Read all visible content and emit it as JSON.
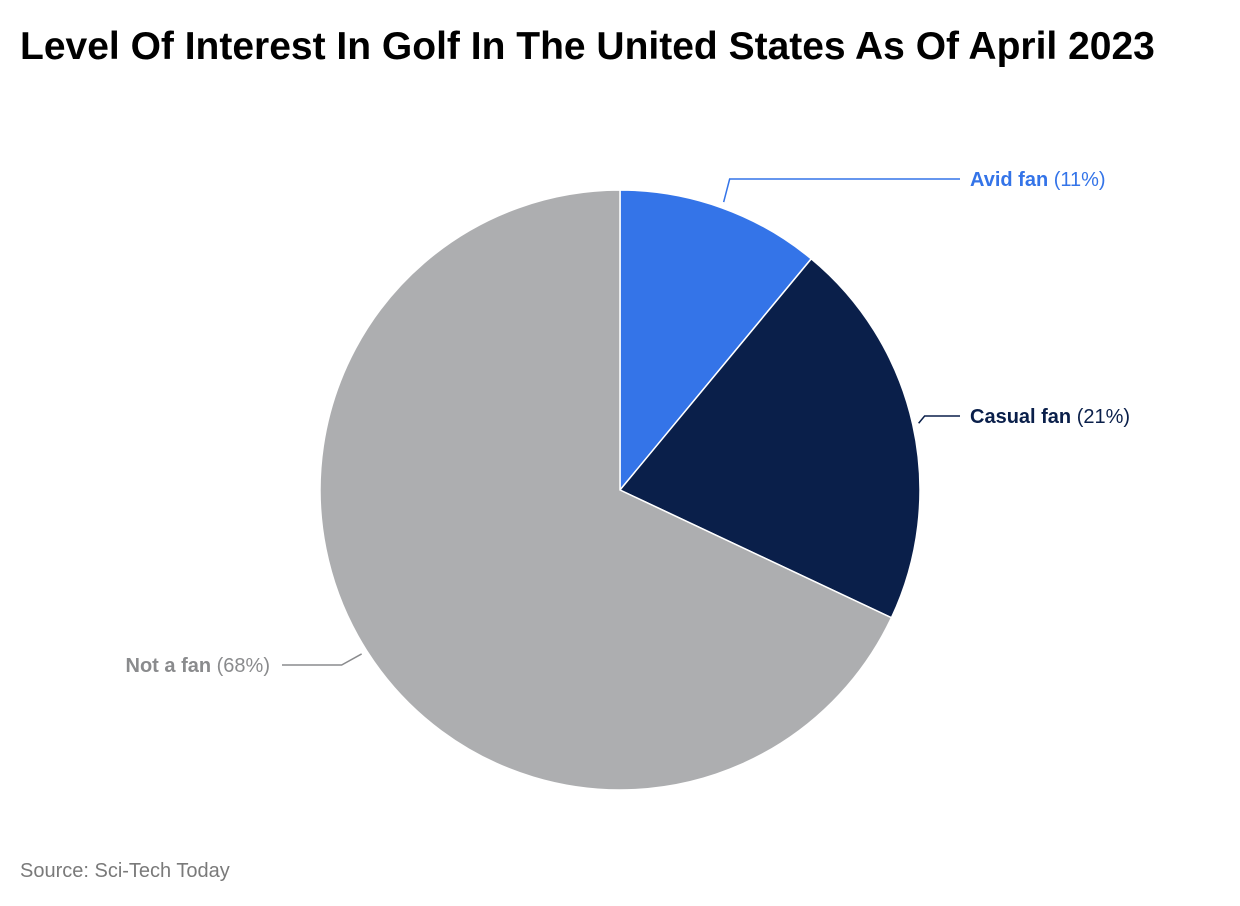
{
  "chart_data": {
    "type": "pie",
    "title": "Level Of Interest In Golf In The United States As Of April 2023",
    "categories": [
      "Avid fan",
      "Casual fan",
      "Not a fan"
    ],
    "values": [
      11,
      21,
      68
    ],
    "value_labels": [
      "(11%)",
      "(21%)",
      "(68%)"
    ],
    "colors": [
      "#3474e8",
      "#0a1f4a",
      "#adaeb0"
    ],
    "label_colors": [
      "#3474e8",
      "#0a1f4a",
      "#8a8b8d"
    ],
    "source": "Source: Sci-Tech Today"
  }
}
